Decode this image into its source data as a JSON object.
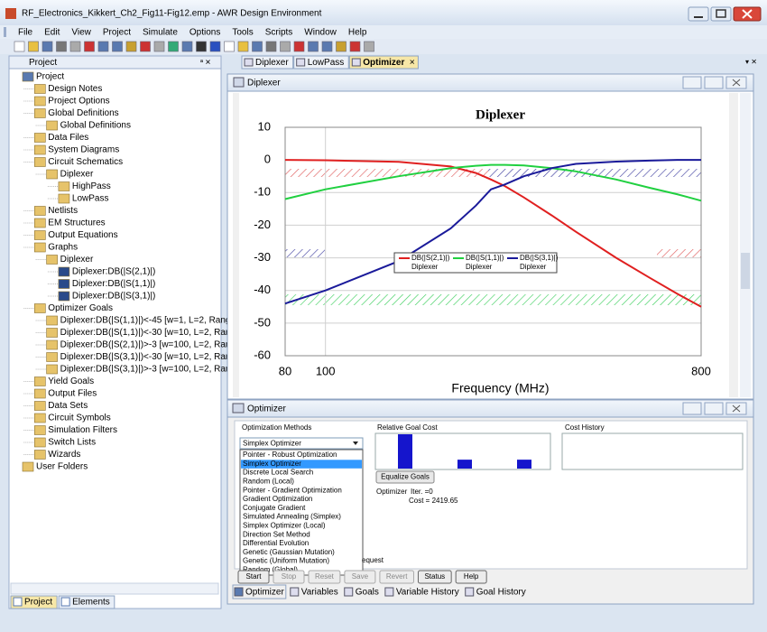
{
  "window": {
    "title": "RF_Electronics_Kikkert_Ch2_Fig11-Fig12.emp - AWR Design Environment",
    "menu": [
      "File",
      "Edit",
      "View",
      "Project",
      "Simulate",
      "Options",
      "Tools",
      "Scripts",
      "Window",
      "Help"
    ]
  },
  "project_panel": {
    "title": "Project",
    "tree": [
      {
        "label": "Project",
        "depth": 0
      },
      {
        "label": "Design Notes",
        "depth": 1
      },
      {
        "label": "Project Options",
        "depth": 1
      },
      {
        "label": "Global Definitions",
        "depth": 1
      },
      {
        "label": "Global Definitions",
        "depth": 2
      },
      {
        "label": "Data Files",
        "depth": 1
      },
      {
        "label": "System Diagrams",
        "depth": 1
      },
      {
        "label": "Circuit Schematics",
        "depth": 1
      },
      {
        "label": "Diplexer",
        "depth": 2
      },
      {
        "label": "HighPass",
        "depth": 3
      },
      {
        "label": "LowPass",
        "depth": 3
      },
      {
        "label": "Netlists",
        "depth": 1
      },
      {
        "label": "EM Structures",
        "depth": 1
      },
      {
        "label": "Output Equations",
        "depth": 1
      },
      {
        "label": "Graphs",
        "depth": 1
      },
      {
        "label": "Diplexer",
        "depth": 2
      },
      {
        "label": "Diplexer:DB(|S(2,1)|)",
        "depth": 3
      },
      {
        "label": "Diplexer:DB(|S(1,1)|)",
        "depth": 3
      },
      {
        "label": "Diplexer:DB(|S(3,1)|)",
        "depth": 3
      },
      {
        "label": "Optimizer Goals",
        "depth": 1
      },
      {
        "label": "Diplexer:DB(|S(1,1)|)<-45 [w=1, L=2, Rang",
        "depth": 2
      },
      {
        "label": "Diplexer:DB(|S(1,1)|)<-30 [w=10, L=2, Ran",
        "depth": 2
      },
      {
        "label": "Diplexer:DB(|S(2,1)|)>-3 [w=100, L=2, Ran",
        "depth": 2
      },
      {
        "label": "Diplexer:DB(|S(3,1)|)<-30 [w=10, L=2, Ran",
        "depth": 2
      },
      {
        "label": "Diplexer:DB(|S(3,1)|)>-3 [w=100, L=2, Ran",
        "depth": 2
      },
      {
        "label": "Yield Goals",
        "depth": 1
      },
      {
        "label": "Output Files",
        "depth": 1
      },
      {
        "label": "Data Sets",
        "depth": 1
      },
      {
        "label": "Circuit Symbols",
        "depth": 1
      },
      {
        "label": "Simulation Filters",
        "depth": 1
      },
      {
        "label": "Switch Lists",
        "depth": 1
      },
      {
        "label": "Wizards",
        "depth": 1
      },
      {
        "label": "User Folders",
        "depth": 0
      }
    ],
    "tabs": [
      "Project",
      "Elements"
    ]
  },
  "document_tabs": [
    "Diplexer",
    "LowPass",
    "Optimizer"
  ],
  "graph_window": {
    "title": "Diplexer",
    "plot": {
      "type": "line",
      "title": "Diplexer",
      "x_label": "Frequency (MHz)",
      "x_scale": "log",
      "xlim": [
        80,
        800
      ],
      "ylim": [
        -60,
        10
      ],
      "xticks": [
        80,
        100,
        800
      ],
      "yticks": [
        10,
        0,
        -10,
        -20,
        -30,
        -40,
        -50,
        -60
      ],
      "x": [
        80,
        100,
        150,
        200,
        230,
        250,
        270,
        300,
        350,
        400,
        500,
        600,
        700,
        800
      ],
      "series": [
        {
          "name": "DB(|S(2,1)|)",
          "source": "Diplexer",
          "color": "#e02020",
          "values": [
            0,
            -0.1,
            -0.6,
            -2,
            -4,
            -6,
            -8,
            -11.5,
            -17,
            -22,
            -30,
            -36,
            -41,
            -45
          ]
        },
        {
          "name": "DB(|S(1,1)|)",
          "source": "Diplexer",
          "color": "#20d040",
          "values": [
            -12,
            -9,
            -5,
            -2.5,
            -1.8,
            -1.5,
            -1.5,
            -1.7,
            -2.5,
            -3.5,
            -6,
            -8.5,
            -10.5,
            -12.5
          ]
        },
        {
          "name": "DB(|S(3,1)|)",
          "source": "Diplexer",
          "color": "#1a1a9a",
          "values": [
            -44,
            -40,
            -31,
            -21,
            -14,
            -9,
            -7.5,
            -5,
            -2.5,
            -1.2,
            -0.5,
            -0.2,
            0,
            0
          ]
        }
      ]
    }
  },
  "optimizer_window": {
    "title": "Optimizer",
    "methods_label": "Optimization Methods",
    "selected_method": "Simplex Optimizer",
    "methods": [
      "Pointer - Robust Optimization",
      "Simplex Optimizer",
      "Discrete Local Search",
      "Random (Local)",
      "Pointer - Gradient Optimization",
      "Gradient Optimization",
      "Conjugate Gradient",
      "Simulated Annealing (Simplex)",
      "Simplex Optimizer (Local)",
      "Direction Set Method",
      "Differential Evolution",
      "Genetic (Gaussian Mutation)",
      "Genetic (Uniform Mutation)",
      "Random (Global)"
    ],
    "highlighted_index": 1,
    "relative_goal_cost_label": "Relative Goal Cost",
    "relative_goal_cost": [
      1,
      0,
      0.26,
      0,
      0.26
    ],
    "cost_history_label": "Cost History",
    "equalize_button": "Equalize Goals",
    "status_label": "Optimizer",
    "iteration": "Iter. =0",
    "cost": "Cost = 2419.65",
    "hidden_text": "equest",
    "buttons": [
      "Start",
      "Stop",
      "Reset",
      "Save",
      "Revert",
      "Status",
      "Help"
    ],
    "enabled_buttons": [
      0,
      5,
      6
    ],
    "tabs": [
      "Optimizer",
      "Variables",
      "Goals",
      "Variable History",
      "Goal History"
    ]
  }
}
